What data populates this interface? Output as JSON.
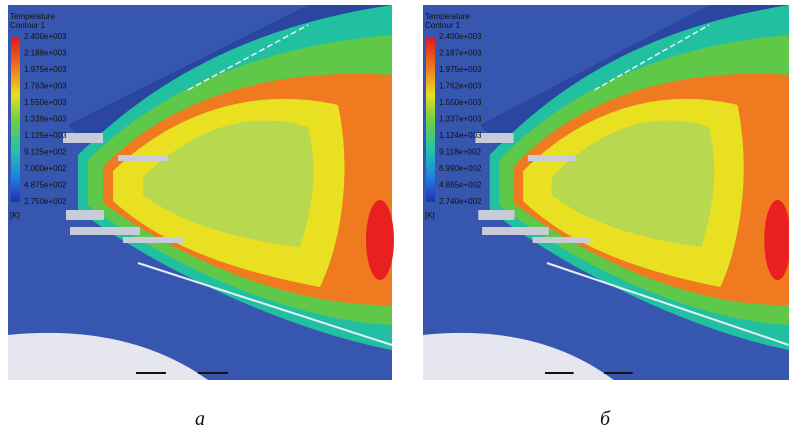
{
  "panels": [
    {
      "caption": "а",
      "legend": {
        "title": "Temperature",
        "subtitle": "Contour 1",
        "labels": [
          "2.400e+003",
          "2.188e+003",
          "1.975e+003",
          "1.763e+003",
          "1.550e+003",
          "1.338e+003",
          "1.125e+003",
          "9.125e+002",
          "7.000e+002",
          "4.875e+002",
          "2.750e+002"
        ],
        "unit": "[K]"
      }
    },
    {
      "caption": "б",
      "legend": {
        "title": "Temperature",
        "subtitle": "Contour 1",
        "labels": [
          "2.400e+003",
          "2.187e+003",
          "1.975e+003",
          "1.762e+003",
          "1.550e+003",
          "1.337e+003",
          "1.124e+003",
          "9.118e+002",
          "6.990e+002",
          "4.865e+002",
          "2.740e+002"
        ],
        "unit": "[K]"
      }
    }
  ]
}
